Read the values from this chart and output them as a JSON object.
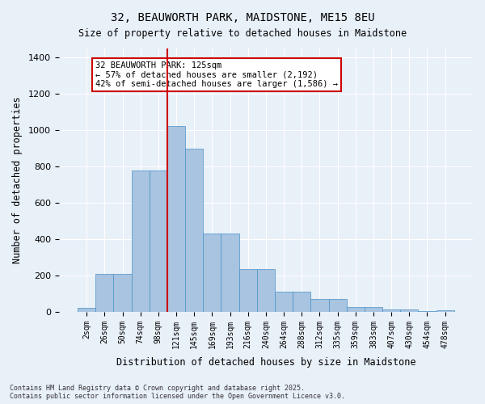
{
  "title1": "32, BEAUWORTH PARK, MAIDSTONE, ME15 8EU",
  "title2": "Size of property relative to detached houses in Maidstone",
  "xlabel": "Distribution of detached houses by size in Maidstone",
  "ylabel": "Number of detached properties",
  "categories": [
    "2sqm",
    "26sqm",
    "50sqm",
    "74sqm",
    "98sqm",
    "121sqm",
    "145sqm",
    "169sqm",
    "193sqm",
    "216sqm",
    "240sqm",
    "264sqm",
    "288sqm",
    "312sqm",
    "335sqm",
    "359sqm",
    "383sqm",
    "407sqm",
    "430sqm",
    "454sqm",
    "478sqm"
  ],
  "values": [
    20,
    210,
    210,
    780,
    780,
    1025,
    900,
    430,
    430,
    235,
    235,
    110,
    110,
    70,
    70,
    25,
    25,
    15,
    15,
    5,
    10
  ],
  "bar_color": "#a8c4e0",
  "bar_edge_color": "#4a90c8",
  "vline_x": 5,
  "vline_color": "#cc0000",
  "annotation_text": "32 BEAUWORTH PARK: 125sqm\n← 57% of detached houses are smaller (2,192)\n42% of semi-detached houses are larger (1,586) →",
  "annotation_box_color": "#ffffff",
  "annotation_box_edge": "#cc0000",
  "background_color": "#e8f0f8",
  "footer": "Contains HM Land Registry data © Crown copyright and database right 2025.\nContains public sector information licensed under the Open Government Licence v3.0.",
  "ylim": [
    0,
    1450
  ],
  "yticks": [
    0,
    200,
    400,
    600,
    800,
    1000,
    1200,
    1400
  ]
}
